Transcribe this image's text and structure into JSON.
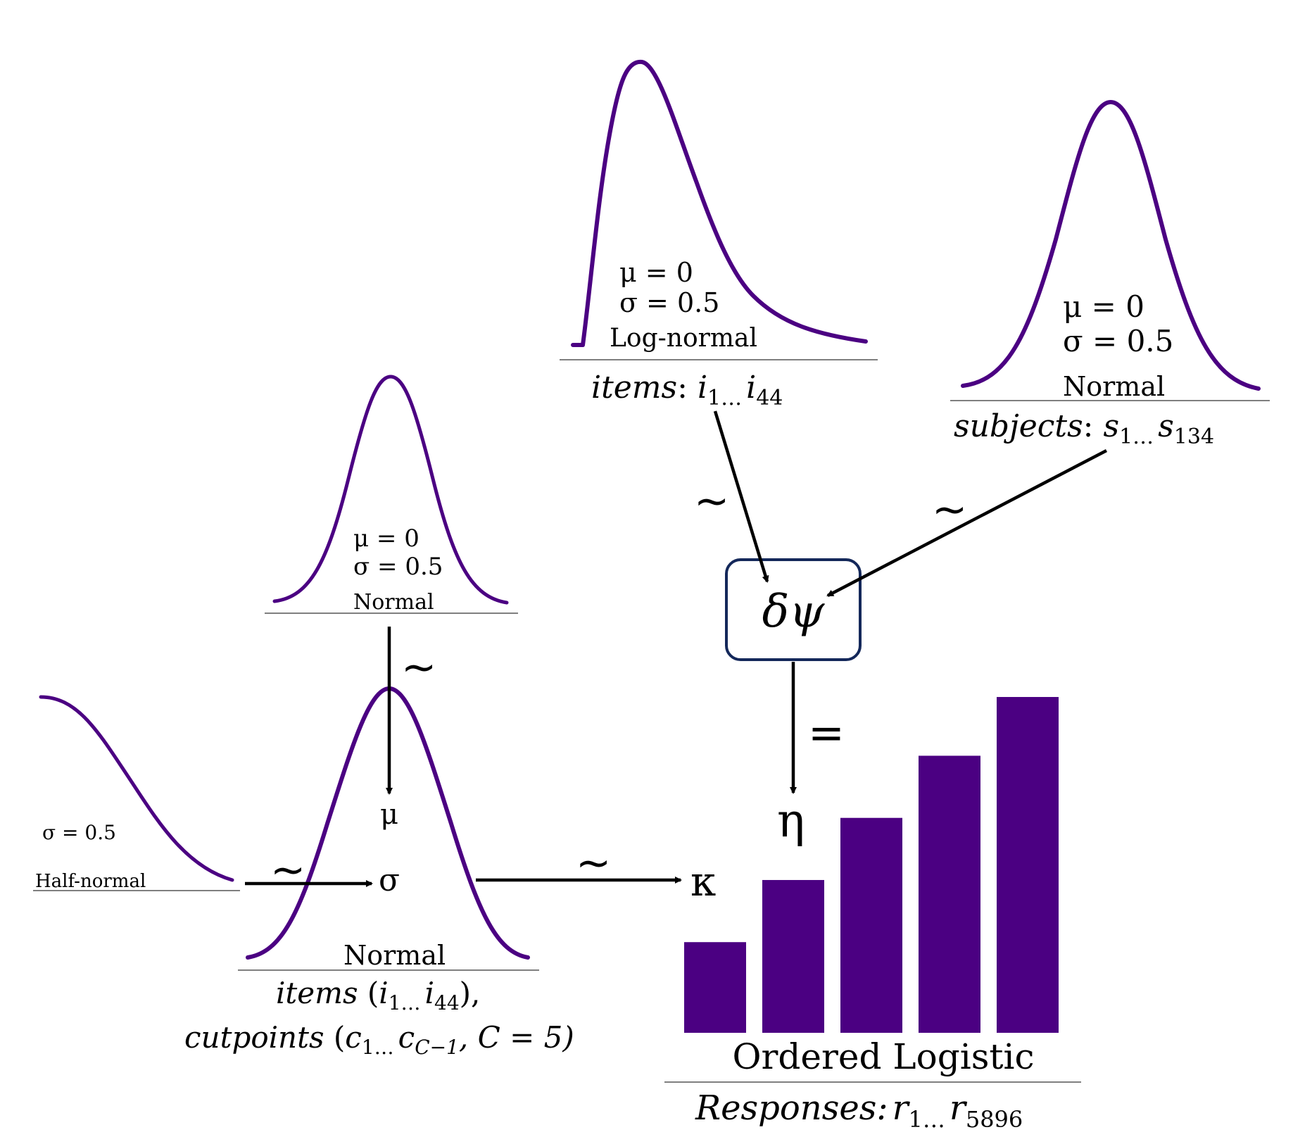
{
  "priors": {
    "item_difficulty": {
      "mu": "μ = 0",
      "sigma": "σ = 0.5",
      "dist": "Log-normal",
      "label_word": "items",
      "label_colon": ":",
      "var1": "i",
      "sub1": "1…",
      "var2": "i",
      "sub2": "44"
    },
    "subject_ability": {
      "mu": "μ = 0",
      "sigma": "σ = 0.5",
      "dist": "Normal",
      "label_word": "subjects",
      "label_colon": ":",
      "var1": "s",
      "sub1": "1…",
      "var2": "s",
      "sub2": "134"
    },
    "mu_prior": {
      "mu": "μ = 0",
      "sigma": "σ = 0.5",
      "dist": "Normal"
    },
    "sigma_prior": {
      "sigma": "σ = 0.5",
      "dist": "Half-normal"
    },
    "cutpoints": {
      "mu_symbol": "μ",
      "sigma_symbol": "σ",
      "dist": "Normal",
      "line1_word": "items",
      "line1_open": " (",
      "line1_var1": "i",
      "line1_sub1": "1…",
      "line1_var2": "i",
      "line1_sub2": "44",
      "line1_close": "),",
      "line2_word": "cutpoints",
      "line2_open": " (",
      "line2_var1": "c",
      "line2_sub1": "1…",
      "line2_var2": "c",
      "line2_sub2": "C−1",
      "line2_rest": ", C = 5",
      "line2_close": ")"
    }
  },
  "tilde": "~",
  "linear_predictor": {
    "box_label": "δψ",
    "equals": "=",
    "eta": "η",
    "kappa": "κ"
  },
  "likelihood": {
    "dist": "Ordered Logistic",
    "label_word": "Responses:",
    "var1": "r",
    "sub1": "1…",
    "var2": "r",
    "sub2": "5896",
    "bar_levels": [
      0.27,
      0.455,
      0.64,
      0.825,
      1.0
    ]
  },
  "colors": {
    "curve": "#4b0082",
    "bars": "#4b0082",
    "box_border": "#14285a",
    "text": "#000000"
  }
}
